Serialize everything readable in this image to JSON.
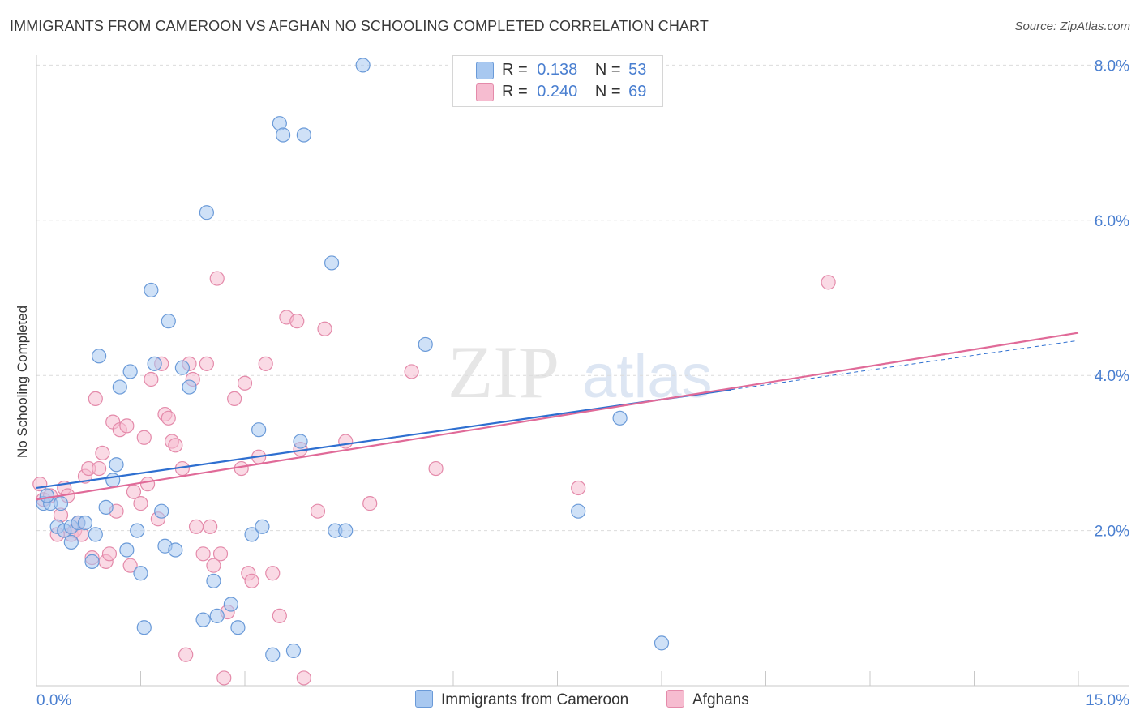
{
  "title": "IMMIGRANTS FROM CAMEROON VS AFGHAN NO SCHOOLING COMPLETED CORRELATION CHART",
  "source": "Source: ZipAtlas.com",
  "watermark": {
    "zip": "ZIP",
    "atlas": "atlas"
  },
  "legend_top": {
    "series1": {
      "r_label": "R =",
      "r_value": "0.138",
      "n_label": "N =",
      "n_value": "53"
    },
    "series2": {
      "r_label": "R =",
      "r_value": "0.240",
      "n_label": "N =",
      "n_value": "69"
    }
  },
  "colors": {
    "blue_fill": "#a8c8f0",
    "blue_stroke": "#6a9ad8",
    "blue_line": "#2e6fd0",
    "pink_fill": "#f6bcd0",
    "pink_stroke": "#e48aaa",
    "pink_line": "#e06a98",
    "axis_label": "#4a7fd0",
    "grid": "#dcdcdc"
  },
  "chart_data": {
    "type": "scatter",
    "ylabel": "No Schooling Completed",
    "xlim": [
      0,
      15
    ],
    "ylim": [
      0,
      8.2
    ],
    "x_tick_labels": [
      "0.0%",
      "15.0%"
    ],
    "y_ticks": [
      2,
      4,
      6,
      8
    ],
    "y_tick_labels": [
      "2.0%",
      "4.0%",
      "6.0%",
      "8.0%"
    ],
    "legend_position": "bottom",
    "series": [
      {
        "name": "Immigrants from Cameroon",
        "color": "blue",
        "r": 0.138,
        "n": 53,
        "trend": {
          "x0": 0,
          "y0": 2.55,
          "x1": 15,
          "y1": 4.45,
          "solid_until": 10
        },
        "points": [
          [
            0.1,
            2.35
          ],
          [
            0.2,
            2.35
          ],
          [
            0.3,
            2.05
          ],
          [
            0.35,
            2.35
          ],
          [
            0.4,
            2.0
          ],
          [
            0.5,
            2.05
          ],
          [
            0.5,
            1.85
          ],
          [
            0.6,
            2.1
          ],
          [
            0.7,
            2.1
          ],
          [
            0.8,
            1.6
          ],
          [
            0.85,
            1.95
          ],
          [
            0.9,
            4.25
          ],
          [
            1.0,
            2.3
          ],
          [
            1.1,
            2.65
          ],
          [
            1.15,
            2.85
          ],
          [
            1.2,
            3.85
          ],
          [
            1.3,
            1.75
          ],
          [
            1.35,
            4.05
          ],
          [
            1.45,
            2.0
          ],
          [
            1.5,
            1.45
          ],
          [
            1.55,
            0.75
          ],
          [
            1.65,
            5.1
          ],
          [
            1.7,
            4.15
          ],
          [
            1.8,
            2.25
          ],
          [
            1.85,
            1.8
          ],
          [
            1.9,
            4.7
          ],
          [
            2.0,
            1.75
          ],
          [
            2.1,
            4.1
          ],
          [
            2.2,
            3.85
          ],
          [
            2.4,
            0.85
          ],
          [
            2.45,
            6.1
          ],
          [
            2.55,
            1.35
          ],
          [
            2.6,
            0.9
          ],
          [
            2.8,
            1.05
          ],
          [
            2.9,
            0.75
          ],
          [
            3.1,
            1.95
          ],
          [
            3.2,
            3.3
          ],
          [
            3.25,
            2.05
          ],
          [
            3.4,
            0.4
          ],
          [
            3.5,
            7.25
          ],
          [
            3.55,
            7.1
          ],
          [
            3.7,
            0.45
          ],
          [
            3.8,
            3.15
          ],
          [
            3.85,
            7.1
          ],
          [
            4.25,
            5.45
          ],
          [
            4.3,
            2.0
          ],
          [
            4.45,
            2.0
          ],
          [
            4.7,
            8.0
          ],
          [
            5.6,
            4.4
          ],
          [
            7.8,
            2.25
          ],
          [
            8.4,
            3.45
          ],
          [
            9.0,
            0.55
          ],
          [
            0.15,
            2.45
          ]
        ]
      },
      {
        "name": "Afghans",
        "color": "pink",
        "r": 0.24,
        "n": 69,
        "trend": {
          "x0": 0,
          "y0": 2.4,
          "x1": 15,
          "y1": 4.55,
          "solid_until": 15
        },
        "points": [
          [
            0.05,
            2.6
          ],
          [
            0.1,
            2.4
          ],
          [
            0.2,
            2.45
          ],
          [
            0.3,
            1.95
          ],
          [
            0.35,
            2.2
          ],
          [
            0.4,
            2.55
          ],
          [
            0.45,
            2.45
          ],
          [
            0.5,
            1.95
          ],
          [
            0.55,
            2.0
          ],
          [
            0.6,
            2.1
          ],
          [
            0.65,
            1.95
          ],
          [
            0.7,
            2.7
          ],
          [
            0.75,
            2.8
          ],
          [
            0.8,
            1.65
          ],
          [
            0.85,
            3.7
          ],
          [
            0.9,
            2.8
          ],
          [
            0.95,
            3.0
          ],
          [
            1.0,
            1.6
          ],
          [
            1.05,
            1.7
          ],
          [
            1.1,
            3.4
          ],
          [
            1.15,
            2.25
          ],
          [
            1.2,
            3.3
          ],
          [
            1.3,
            3.35
          ],
          [
            1.35,
            1.55
          ],
          [
            1.4,
            2.5
          ],
          [
            1.5,
            2.35
          ],
          [
            1.55,
            3.2
          ],
          [
            1.6,
            2.6
          ],
          [
            1.65,
            3.95
          ],
          [
            1.75,
            2.15
          ],
          [
            1.8,
            4.15
          ],
          [
            1.85,
            3.5
          ],
          [
            1.9,
            3.45
          ],
          [
            1.95,
            3.15
          ],
          [
            2.0,
            3.1
          ],
          [
            2.1,
            2.8
          ],
          [
            2.15,
            0.4
          ],
          [
            2.2,
            4.15
          ],
          [
            2.25,
            3.95
          ],
          [
            2.3,
            2.05
          ],
          [
            2.4,
            1.7
          ],
          [
            2.45,
            4.15
          ],
          [
            2.5,
            2.05
          ],
          [
            2.55,
            1.55
          ],
          [
            2.6,
            5.25
          ],
          [
            2.65,
            1.7
          ],
          [
            2.7,
            0.1
          ],
          [
            2.75,
            0.95
          ],
          [
            2.85,
            3.7
          ],
          [
            2.95,
            2.8
          ],
          [
            3.0,
            3.9
          ],
          [
            3.05,
            1.45
          ],
          [
            3.1,
            1.35
          ],
          [
            3.2,
            2.95
          ],
          [
            3.3,
            4.15
          ],
          [
            3.4,
            1.45
          ],
          [
            3.5,
            0.9
          ],
          [
            3.6,
            4.75
          ],
          [
            3.75,
            4.7
          ],
          [
            3.8,
            3.05
          ],
          [
            3.85,
            0.1
          ],
          [
            4.05,
            2.25
          ],
          [
            4.15,
            4.6
          ],
          [
            4.45,
            3.15
          ],
          [
            4.8,
            2.35
          ],
          [
            5.4,
            4.05
          ],
          [
            5.75,
            2.8
          ],
          [
            7.8,
            2.55
          ],
          [
            11.4,
            5.2
          ]
        ]
      }
    ]
  }
}
